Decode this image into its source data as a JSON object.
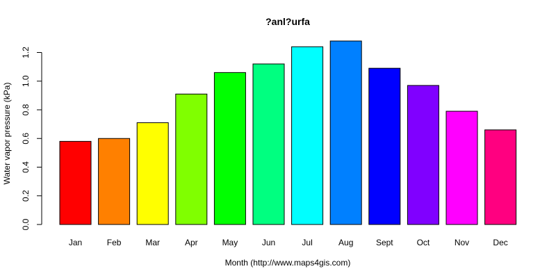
{
  "chart_data": {
    "type": "bar",
    "title": "?anl?urfa",
    "xlabel": "Month (http://www.maps4gis.com)",
    "ylabel": "Water vapor pressure (kPa)",
    "categories": [
      "Jan",
      "Feb",
      "Mar",
      "Apr",
      "May",
      "Jun",
      "Jul",
      "Aug",
      "Sept",
      "Oct",
      "Nov",
      "Dec"
    ],
    "values": [
      0.58,
      0.6,
      0.71,
      0.91,
      1.06,
      1.12,
      1.24,
      1.28,
      1.09,
      0.97,
      0.79,
      0.66
    ],
    "colors": [
      "#FF0000",
      "#FF8000",
      "#FFFF00",
      "#80FF00",
      "#00FF00",
      "#00FF80",
      "#00FFFF",
      "#0080FF",
      "#0000FF",
      "#8000FF",
      "#FF00FF",
      "#FF0080"
    ],
    "yticks": [
      "0.0",
      "0.2",
      "0.4",
      "0.6",
      "0.8",
      "1.0",
      "1.2"
    ],
    "ylim": [
      0,
      1.28
    ],
    "grid": false,
    "legend": "none"
  }
}
